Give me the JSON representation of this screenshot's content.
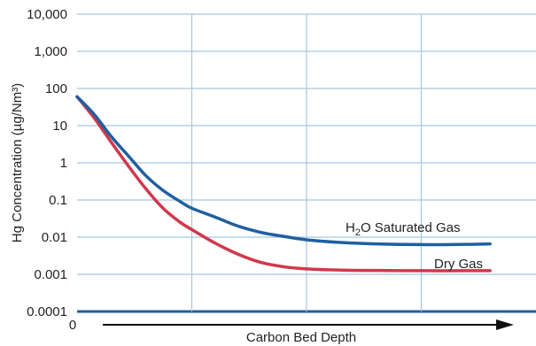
{
  "chart_data": {
    "type": "line",
    "title": "",
    "xlabel": "Carbon  Bed Depth",
    "ylabel": "Hg Concentration (µg/Nm³)",
    "yscale": "log",
    "ylim": [
      0.0001,
      10000
    ],
    "xlim": [
      0,
      4
    ],
    "x_tick_labels": [
      {
        "x": 0,
        "label": "0"
      }
    ],
    "y_ticks": [
      {
        "value": 10000,
        "label": "10,000"
      },
      {
        "value": 1000,
        "label": "1,000"
      },
      {
        "value": 100,
        "label": "100"
      },
      {
        "value": 10,
        "label": "10"
      },
      {
        "value": 1,
        "label": "1"
      },
      {
        "value": 0.1,
        "label": "0.1"
      },
      {
        "value": 0.01,
        "label": "0.01"
      },
      {
        "value": 0.001,
        "label": "0.001"
      },
      {
        "value": 0.0001,
        "label": "0.0001"
      }
    ],
    "x_gridlines": [
      1,
      2,
      3
    ],
    "grid": true,
    "series": [
      {
        "name": "H₂O Saturated Gas",
        "label_parts": [
          "H",
          "2",
          "O Saturated Gas"
        ],
        "color": "#1f5fa0",
        "points": [
          [
            0,
            60
          ],
          [
            0.15,
            20
          ],
          [
            0.3,
            5
          ],
          [
            0.45,
            1.5
          ],
          [
            0.6,
            0.45
          ],
          [
            0.75,
            0.18
          ],
          [
            0.9,
            0.09
          ],
          [
            1.0,
            0.06
          ],
          [
            1.2,
            0.035
          ],
          [
            1.4,
            0.02
          ],
          [
            1.6,
            0.0135
          ],
          [
            1.8,
            0.0105
          ],
          [
            2.0,
            0.0085
          ],
          [
            2.3,
            0.0072
          ],
          [
            2.6,
            0.0066
          ],
          [
            3.0,
            0.0063
          ],
          [
            3.4,
            0.0064
          ],
          [
            3.6,
            0.0066
          ]
        ]
      },
      {
        "name": "Dry Gas",
        "label_parts": [
          "Dry Gas"
        ],
        "color": "#d0384b",
        "points": [
          [
            0,
            60
          ],
          [
            0.15,
            16
          ],
          [
            0.3,
            3.5
          ],
          [
            0.45,
            0.8
          ],
          [
            0.6,
            0.2
          ],
          [
            0.75,
            0.06
          ],
          [
            0.9,
            0.025
          ],
          [
            1.0,
            0.016
          ],
          [
            1.2,
            0.007
          ],
          [
            1.4,
            0.0035
          ],
          [
            1.6,
            0.0021
          ],
          [
            1.8,
            0.0016
          ],
          [
            2.0,
            0.0014
          ],
          [
            2.3,
            0.0013
          ],
          [
            2.6,
            0.00127
          ],
          [
            3.0,
            0.00125
          ],
          [
            3.4,
            0.00125
          ],
          [
            3.6,
            0.00125
          ]
        ]
      }
    ]
  },
  "colors": {
    "grid": "#a8c6e0",
    "axis": "#1f5fa0",
    "arrow": "#111111"
  }
}
